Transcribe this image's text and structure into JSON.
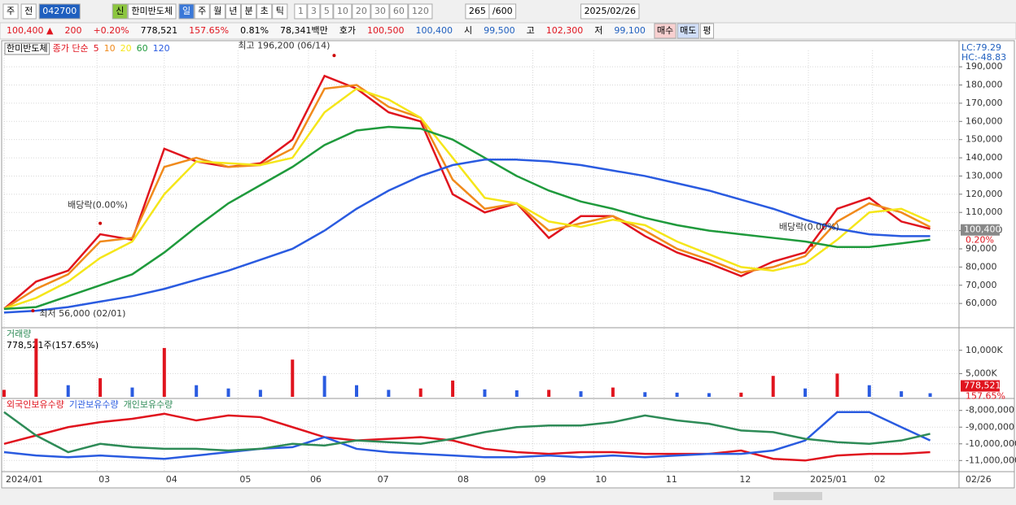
{
  "toolbar": {
    "market": "주",
    "prev": "전",
    "code": "042700",
    "badge": "신",
    "name": "한미반도체",
    "periods": [
      "일",
      "주",
      "월",
      "년",
      "분",
      "초",
      "틱"
    ],
    "intervals": [
      "1",
      "3",
      "5",
      "10",
      "20",
      "30",
      "60",
      "120"
    ],
    "count": "265",
    "max": "/600",
    "date": "2025/02/26"
  },
  "quote": {
    "price": "100,400 ▲",
    "change": "200",
    "rate": "+0.20%",
    "volume": "778,521",
    "volume_rate": "157.65%",
    "turnover": "0.81%",
    "amount": "78,341백만",
    "ask_label": "호가",
    "ask": "100,500",
    "bid": "100,400",
    "open_label": "시",
    "open": "99,500",
    "high_label": "고",
    "high": "102,300",
    "low_label": "저",
    "low": "99,100",
    "buy": "매수",
    "sell": "매도",
    "eval": "평"
  },
  "chart_data": [
    {
      "type": "line",
      "title": "한미반도체",
      "subtitle": "종가 단순",
      "right_labels": [
        "LC:79.29",
        "HC:-48.83"
      ],
      "x": [
        0,
        10,
        20,
        30,
        40,
        50,
        60,
        70,
        80,
        90,
        100,
        110,
        120,
        130,
        140,
        150,
        160,
        170,
        180,
        190,
        200,
        210,
        220,
        230,
        240,
        250,
        260,
        270,
        280,
        289
      ],
      "xlim": [
        0,
        298
      ],
      "xticks": [
        {
          "value": 0,
          "label": "2024/01"
        },
        {
          "value": 29,
          "label": "03"
        },
        {
          "value": 50,
          "label": "04"
        },
        {
          "value": 73,
          "label": "05"
        },
        {
          "value": 95,
          "label": "06"
        },
        {
          "value": 116,
          "label": "07"
        },
        {
          "value": 141,
          "label": "08"
        },
        {
          "value": 165,
          "label": "09"
        },
        {
          "value": 184,
          "label": "10"
        },
        {
          "value": 206,
          "label": "11"
        },
        {
          "value": 229,
          "label": "12"
        },
        {
          "value": 251,
          "label": "2025/01"
        },
        {
          "value": 271,
          "label": "02"
        },
        {
          "value": 298,
          "label": "02/26"
        }
      ],
      "ylim": [
        48000,
        199000
      ],
      "yticks": [
        {
          "value": 60000,
          "label": "60,000"
        },
        {
          "value": 70000,
          "label": "70,000"
        },
        {
          "value": 80000,
          "label": "80,000"
        },
        {
          "value": 90000,
          "label": "90,000"
        },
        {
          "value": 100000,
          "label": "100,000"
        },
        {
          "value": 110000,
          "label": "110,000"
        },
        {
          "value": 120000,
          "label": "120,000"
        },
        {
          "value": 130000,
          "label": "130,000"
        },
        {
          "value": 140000,
          "label": "140,000"
        },
        {
          "value": 150000,
          "label": "150,000"
        },
        {
          "value": 160000,
          "label": "160,000"
        },
        {
          "value": 170000,
          "label": "170,000"
        },
        {
          "value": 180000,
          "label": "180,000"
        },
        {
          "value": 190000,
          "label": "190,000"
        }
      ],
      "grid": true,
      "series": [
        {
          "name": "5",
          "color": "#e0141e",
          "values": [
            57000,
            72000,
            78000,
            98000,
            95000,
            145000,
            138000,
            135000,
            137000,
            150000,
            185000,
            178000,
            165000,
            160000,
            120000,
            110000,
            115000,
            96000,
            108000,
            108000,
            97000,
            88000,
            82000,
            75000,
            83000,
            88000,
            112000,
            118000,
            105000,
            101000
          ]
        },
        {
          "name": "10",
          "color": "#f08a1c",
          "values": [
            57000,
            68000,
            76000,
            94000,
            96000,
            135000,
            140000,
            135000,
            136000,
            145000,
            178000,
            180000,
            168000,
            162000,
            128000,
            112000,
            115000,
            100000,
            104000,
            108000,
            100000,
            90000,
            84000,
            77000,
            80000,
            86000,
            105000,
            115000,
            110000,
            102000
          ]
        },
        {
          "name": "20",
          "color": "#f5e61a",
          "values": [
            57000,
            63000,
            72000,
            85000,
            94000,
            120000,
            138000,
            137000,
            136000,
            140000,
            165000,
            178000,
            172000,
            162000,
            140000,
            118000,
            115000,
            105000,
            102000,
            106000,
            103000,
            94000,
            87000,
            80000,
            78000,
            82000,
            95000,
            110000,
            112000,
            105000
          ]
        },
        {
          "name": "60",
          "color": "#1f9a3c",
          "values": [
            57000,
            58000,
            64000,
            70000,
            76000,
            88000,
            102000,
            115000,
            125000,
            135000,
            147000,
            155000,
            157000,
            156000,
            150000,
            140000,
            130000,
            122000,
            116000,
            112000,
            107000,
            103000,
            100000,
            98000,
            96000,
            94000,
            91000,
            91000,
            93000,
            95000
          ]
        },
        {
          "name": "120",
          "color": "#2a5be0",
          "values": [
            55000,
            56000,
            58000,
            61000,
            64000,
            68000,
            73000,
            78000,
            84000,
            90000,
            100000,
            112000,
            122000,
            130000,
            136000,
            139000,
            139000,
            138000,
            136000,
            133000,
            130000,
            126000,
            122000,
            117000,
            112000,
            106000,
            101000,
            98000,
            97000,
            97000
          ]
        }
      ],
      "annotations": [
        {
          "text": "최고 196,200 (06/14)",
          "x": 103,
          "y": 196200
        },
        {
          "text": "최저 56,000 (02/01)",
          "x": 9,
          "y": 56000
        },
        {
          "text": "배당락(0.00%)",
          "x": 30,
          "y": 104000
        },
        {
          "text": "배당락(0.00%)",
          "x": 252,
          "y": 92000
        }
      ],
      "last": {
        "value": 100400,
        "label": "100,400"
      },
      "last_rate": "0.20%"
    },
    {
      "type": "bar",
      "title": "거래량",
      "subtitle": "778,521주(157.65%)",
      "color_up": "#e0141e",
      "color_down": "#2a5be0",
      "x": [
        0,
        10,
        20,
        30,
        40,
        50,
        60,
        70,
        80,
        90,
        100,
        110,
        120,
        130,
        140,
        150,
        160,
        170,
        180,
        190,
        200,
        210,
        220,
        230,
        240,
        250,
        260,
        270,
        280,
        289
      ],
      "xlim": [
        0,
        298
      ],
      "ylim": [
        0,
        14500000
      ],
      "yticks": [
        {
          "value": 5000000,
          "label": "5,000K"
        },
        {
          "value": 10000000,
          "label": "10,000K"
        }
      ],
      "values": [
        1500000,
        12500000,
        2500000,
        4000000,
        2000000,
        10500000,
        2500000,
        1800000,
        1500000,
        8000000,
        4500000,
        2500000,
        1500000,
        1800000,
        3500000,
        1600000,
        1400000,
        1500000,
        1200000,
        2000000,
        1000000,
        900000,
        800000,
        900000,
        4500000,
        1800000,
        5000000,
        2500000,
        1200000,
        778521
      ],
      "last": {
        "value": 778521,
        "label": "778,521"
      },
      "last_rate": "157.65%"
    },
    {
      "type": "line",
      "x": [
        0,
        10,
        20,
        30,
        40,
        50,
        60,
        70,
        80,
        90,
        100,
        110,
        120,
        130,
        140,
        150,
        160,
        170,
        180,
        190,
        200,
        210,
        220,
        230,
        240,
        250,
        260,
        270,
        280,
        289
      ],
      "xlim": [
        0,
        298
      ],
      "ylim": [
        -11570000,
        -7380000
      ],
      "yticks": [
        {
          "value": -8000000,
          "label": "-8,000,000"
        },
        {
          "value": -9000000,
          "label": "-9,000,000"
        },
        {
          "value": -10000000,
          "label": "-10,000,000"
        },
        {
          "value": -11000000,
          "label": "-11,000,000"
        }
      ],
      "series": [
        {
          "name": "외국인보유수량",
          "color": "#e0141e",
          "values": [
            -10000000,
            -9500000,
            -9000000,
            -8700000,
            -8500000,
            -8200000,
            -8600000,
            -8300000,
            -8400000,
            -9000000,
            -9600000,
            -9800000,
            -9700000,
            -9600000,
            -9800000,
            -10300000,
            -10500000,
            -10600000,
            -10500000,
            -10500000,
            -10600000,
            -10600000,
            -10600000,
            -10400000,
            -10900000,
            -11000000,
            -10700000,
            -10600000,
            -10600000,
            -10500000
          ]
        },
        {
          "name": "기관보유수량",
          "color": "#2a5be0",
          "values": [
            -10500000,
            -10700000,
            -10800000,
            -10700000,
            -10800000,
            -10900000,
            -10700000,
            -10500000,
            -10300000,
            -10200000,
            -9600000,
            -10300000,
            -10500000,
            -10600000,
            -10700000,
            -10800000,
            -10800000,
            -10700000,
            -10800000,
            -10700000,
            -10800000,
            -10700000,
            -10600000,
            -10600000,
            -10400000,
            -9800000,
            -8100000,
            -8100000,
            -9000000,
            -9800000
          ]
        },
        {
          "name": "개인보유수량",
          "color": "#2e8b57",
          "values": [
            -8100000,
            -9500000,
            -10500000,
            -10000000,
            -10200000,
            -10300000,
            -10300000,
            -10400000,
            -10300000,
            -10000000,
            -10100000,
            -9800000,
            -9900000,
            -10000000,
            -9700000,
            -9300000,
            -9000000,
            -8900000,
            -8900000,
            -8700000,
            -8300000,
            -8600000,
            -8800000,
            -9200000,
            -9300000,
            -9700000,
            -9900000,
            -10000000,
            -9800000,
            -9400000
          ]
        }
      ]
    }
  ]
}
